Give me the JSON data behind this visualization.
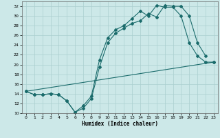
{
  "xlabel": "Humidex (Indice chaleur)",
  "bg_color": "#cce8e8",
  "line_color": "#1a6b6b",
  "grid_color": "#aacfcf",
  "ylim": [
    10,
    33
  ],
  "xlim": [
    -0.5,
    23.5
  ],
  "yticks": [
    10,
    12,
    14,
    16,
    18,
    20,
    22,
    24,
    26,
    28,
    30,
    32
  ],
  "xticks": [
    0,
    1,
    2,
    3,
    4,
    5,
    6,
    7,
    8,
    9,
    10,
    11,
    12,
    13,
    14,
    15,
    16,
    17,
    18,
    19,
    20,
    21,
    22,
    23
  ],
  "series1_x": [
    0,
    1,
    2,
    3,
    4,
    5,
    6,
    7,
    8,
    9,
    10,
    11,
    12,
    13,
    14,
    15,
    16,
    17,
    18,
    19,
    20,
    21,
    22
  ],
  "series1_y": [
    14.5,
    13.8,
    13.8,
    14.0,
    13.8,
    12.5,
    10.2,
    11.0,
    13.0,
    19.5,
    24.5,
    26.5,
    27.5,
    28.5,
    29.0,
    30.5,
    29.8,
    32.2,
    32.0,
    32.0,
    30.0,
    24.5,
    21.8
  ],
  "series2_x": [
    0,
    1,
    2,
    3,
    4,
    5,
    6,
    7,
    8,
    9,
    10,
    11,
    12,
    13,
    14,
    15,
    16,
    17,
    18,
    19,
    20,
    21,
    22,
    23
  ],
  "series2_y": [
    14.5,
    13.8,
    13.8,
    14.0,
    13.8,
    12.5,
    10.2,
    11.5,
    13.5,
    21.0,
    25.5,
    27.2,
    28.0,
    29.5,
    31.0,
    30.0,
    32.2,
    31.8,
    31.8,
    30.0,
    24.5,
    21.8,
    20.5,
    20.5
  ],
  "series3_x": [
    0,
    23
  ],
  "series3_y": [
    14.5,
    20.5
  ]
}
